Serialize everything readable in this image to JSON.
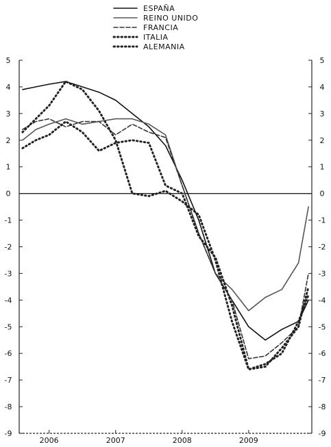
{
  "chart_data": {
    "type": "line",
    "title": "",
    "xlabel": "",
    "ylabel": "",
    "x_domain": [
      2005.55,
      2009.95
    ],
    "ylim": [
      -9,
      5
    ],
    "y_ticks": [
      5,
      4,
      3,
      2,
      1,
      0,
      -1,
      -2,
      -3,
      -4,
      -5,
      -6,
      -7,
      -8,
      -9
    ],
    "x_ticks": [
      {
        "value": 2006,
        "label": "2006"
      },
      {
        "value": 2007,
        "label": "2007"
      },
      {
        "value": 2008,
        "label": "2008"
      },
      {
        "value": 2009,
        "label": "2009"
      }
    ],
    "zero_line": true,
    "legend_position": "top-center",
    "series": [
      {
        "name": "ESPAÑA",
        "style": "solid",
        "color": "#111111",
        "x": [
          2005.6,
          2005.8,
          2006.0,
          2006.25,
          2006.5,
          2006.75,
          2007.0,
          2007.25,
          2007.5,
          2007.75,
          2008.0,
          2008.25,
          2008.5,
          2008.75,
          2009.0,
          2009.25,
          2009.5,
          2009.75,
          2009.9
        ],
        "y": [
          3.9,
          4.0,
          4.1,
          4.2,
          4.0,
          3.8,
          3.5,
          3.0,
          2.5,
          1.8,
          0.5,
          -1.0,
          -3.0,
          -4.0,
          -5.0,
          -5.5,
          -5.1,
          -4.8,
          -4.0
        ]
      },
      {
        "name": "REINO UNIDO",
        "style": "solid",
        "color": "#555555",
        "x": [
          2005.6,
          2005.8,
          2006.0,
          2006.25,
          2006.5,
          2006.75,
          2007.0,
          2007.25,
          2007.5,
          2007.75,
          2008.0,
          2008.25,
          2008.5,
          2008.75,
          2009.0,
          2009.25,
          2009.5,
          2009.75,
          2009.9
        ],
        "y": [
          2.0,
          2.4,
          2.6,
          2.8,
          2.6,
          2.7,
          2.8,
          2.8,
          2.6,
          2.2,
          0.3,
          -1.5,
          -3.0,
          -3.6,
          -4.4,
          -3.9,
          -3.6,
          -2.6,
          -0.5
        ]
      },
      {
        "name": "FRANCIA",
        "style": "dashed",
        "color": "#333333",
        "x": [
          2005.6,
          2005.8,
          2006.0,
          2006.25,
          2006.5,
          2006.75,
          2007.0,
          2007.25,
          2007.5,
          2007.75,
          2008.0,
          2008.25,
          2008.5,
          2008.75,
          2009.0,
          2009.25,
          2009.5,
          2009.75,
          2009.9
        ],
        "y": [
          2.4,
          2.7,
          2.8,
          2.5,
          2.7,
          2.7,
          2.2,
          2.6,
          2.3,
          2.1,
          0.3,
          -1.5,
          -3.0,
          -4.0,
          -6.2,
          -6.1,
          -5.6,
          -5.0,
          -3.0
        ]
      },
      {
        "name": "ITALIA",
        "style": "dotted",
        "color": "#222222",
        "x": [
          2005.6,
          2005.8,
          2006.0,
          2006.25,
          2006.5,
          2006.75,
          2007.0,
          2007.25,
          2007.5,
          2007.75,
          2008.0,
          2008.25,
          2008.5,
          2008.75,
          2009.0,
          2009.25,
          2009.5,
          2009.75,
          2009.9
        ],
        "y": [
          1.7,
          2.0,
          2.2,
          2.7,
          2.3,
          1.6,
          1.9,
          2.0,
          1.9,
          0.3,
          0.0,
          -1.6,
          -2.4,
          -4.2,
          -6.6,
          -6.4,
          -6.0,
          -4.8,
          -3.8
        ]
      },
      {
        "name": "ALEMANIA",
        "style": "dotted",
        "color": "#222222",
        "x": [
          2005.6,
          2005.8,
          2006.0,
          2006.25,
          2006.5,
          2006.75,
          2007.0,
          2007.25,
          2007.5,
          2007.75,
          2008.0,
          2008.25,
          2008.5,
          2008.75,
          2009.0,
          2009.25,
          2009.5,
          2009.75,
          2009.9
        ],
        "y": [
          2.3,
          2.8,
          3.3,
          4.2,
          3.9,
          3.1,
          2.0,
          0.0,
          -0.1,
          0.1,
          -0.3,
          -0.8,
          -2.5,
          -4.8,
          -6.6,
          -6.5,
          -5.8,
          -5.0,
          -3.5
        ]
      }
    ]
  }
}
